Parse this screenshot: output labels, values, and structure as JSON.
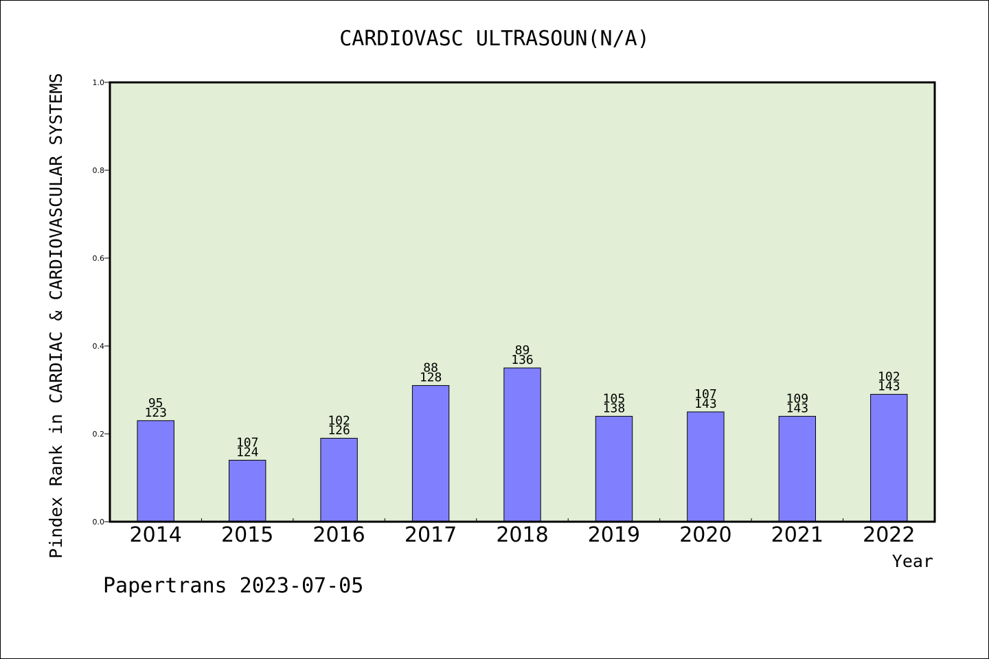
{
  "chart_data": {
    "type": "bar",
    "title": "CARDIOVASC ULTRASOUN(N/A)",
    "xlabel": "Year",
    "ylabel": "Pindex Rank in CARDIAC & CARDIOVASCULAR SYSTEMS",
    "categories": [
      "2014",
      "2015",
      "2016",
      "2017",
      "2018",
      "2019",
      "2020",
      "2021",
      "2022"
    ],
    "values": [
      0.23,
      0.14,
      0.19,
      0.31,
      0.35,
      0.24,
      0.25,
      0.24,
      0.29
    ],
    "label_top": [
      "95",
      "107",
      "102",
      "88",
      "89",
      "105",
      "107",
      "109",
      "102"
    ],
    "label_bottom": [
      "123",
      "124",
      "126",
      "128",
      "136",
      "138",
      "143",
      "143",
      "143"
    ],
    "ylim": [
      0,
      1.0
    ],
    "yticks": [
      "0.0",
      "0.2",
      "0.4",
      "0.6",
      "0.8",
      "1.0"
    ],
    "grid": false,
    "colors": {
      "bar": "#8080ff",
      "plot_bg": "#e2efd6",
      "axis": "#000000"
    }
  },
  "footer": {
    "text": "Papertrans 2023-07-05"
  }
}
